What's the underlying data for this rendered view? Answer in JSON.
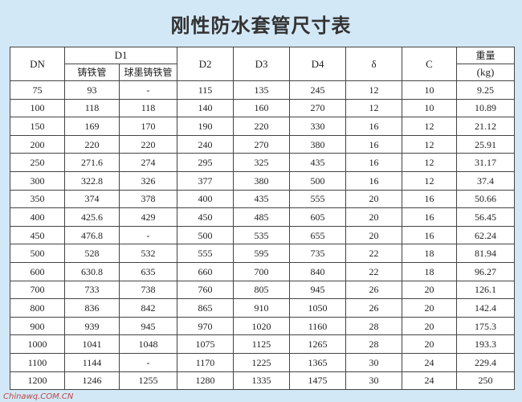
{
  "title": "刚性防水套管尺寸表",
  "header": {
    "dn": "DN",
    "d1": "D1",
    "cast": "铸铁管",
    "ductile": "球墨铸铁管",
    "d2": "D2",
    "d3": "D3",
    "d4": "D4",
    "delta": "δ",
    "c": "C",
    "weight": "重量",
    "unit": "(kg)"
  },
  "table": {
    "rows": [
      [
        "75",
        "93",
        "-",
        "115",
        "135",
        "245",
        "12",
        "10",
        "9.25"
      ],
      [
        "100",
        "118",
        "118",
        "140",
        "160",
        "270",
        "12",
        "10",
        "10.89"
      ],
      [
        "150",
        "169",
        "170",
        "190",
        "220",
        "330",
        "16",
        "12",
        "21.12"
      ],
      [
        "200",
        "220",
        "220",
        "240",
        "270",
        "380",
        "16",
        "12",
        "25.91"
      ],
      [
        "250",
        "271.6",
        "274",
        "295",
        "325",
        "435",
        "16",
        "12",
        "31.17"
      ],
      [
        "300",
        "322.8",
        "326",
        "377",
        "380",
        "500",
        "16",
        "12",
        "37.4"
      ],
      [
        "350",
        "374",
        "378",
        "400",
        "435",
        "555",
        "20",
        "16",
        "50.66"
      ],
      [
        "400",
        "425.6",
        "429",
        "450",
        "485",
        "605",
        "20",
        "16",
        "56.45"
      ],
      [
        "450",
        "476.8",
        "-",
        "500",
        "535",
        "655",
        "20",
        "16",
        "62.24"
      ],
      [
        "500",
        "528",
        "532",
        "555",
        "595",
        "735",
        "22",
        "18",
        "81.94"
      ],
      [
        "600",
        "630.8",
        "635",
        "660",
        "700",
        "840",
        "22",
        "18",
        "96.27"
      ],
      [
        "700",
        "733",
        "738",
        "760",
        "805",
        "945",
        "26",
        "20",
        "126.1"
      ],
      [
        "800",
        "836",
        "842",
        "865",
        "910",
        "1050",
        "26",
        "20",
        "142.4"
      ],
      [
        "900",
        "939",
        "945",
        "970",
        "1020",
        "1160",
        "28",
        "20",
        "175.3"
      ],
      [
        "1000",
        "1041",
        "1048",
        "1075",
        "1125",
        "1265",
        "28",
        "20",
        "193.3"
      ],
      [
        "1100",
        "1144",
        "-",
        "1170",
        "1225",
        "1365",
        "30",
        "24",
        "229.4"
      ],
      [
        "1200",
        "1246",
        "1255",
        "1280",
        "1335",
        "1475",
        "30",
        "24",
        "250"
      ]
    ]
  },
  "watermark": "Chinawq.COM.CN"
}
